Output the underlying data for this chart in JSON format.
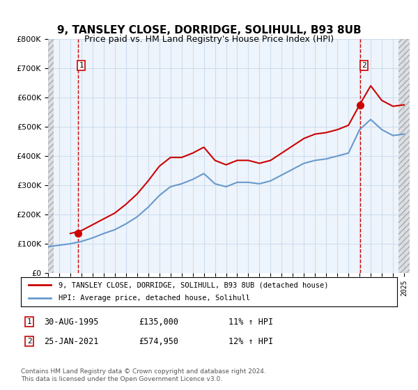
{
  "title": "9, TANSLEY CLOSE, DORRIDGE, SOLIHULL, B93 8UB",
  "subtitle": "Price paid vs. HM Land Registry's House Price Index (HPI)",
  "legend_line1": "9, TANSLEY CLOSE, DORRIDGE, SOLIHULL, B93 8UB (detached house)",
  "legend_line2": "HPI: Average price, detached house, Solihull",
  "annotation1": {
    "num": "1",
    "date": "30-AUG-1995",
    "price": "£135,000",
    "hpi": "11% ↑ HPI"
  },
  "annotation2": {
    "num": "2",
    "date": "25-JAN-2021",
    "price": "£574,950",
    "hpi": "12% ↑ HPI"
  },
  "footer": "Contains HM Land Registry data © Crown copyright and database right 2024.\nThis data is licensed under the Open Government Licence v3.0.",
  "price_color": "#cc0000",
  "hpi_color": "#6699cc",
  "hatch_color": "#cccccc",
  "grid_color": "#ccddee",
  "bg_color": "#ddeeff",
  "plot_bg": "#eef4fb",
  "marker1_x": 1995.67,
  "marker1_y": 135000,
  "marker2_x": 2021.07,
  "marker2_y": 574950,
  "ylim": [
    0,
    800000
  ],
  "xlim": [
    1993,
    2025.5
  ],
  "hpi_series_x": [
    1993,
    1994,
    1995,
    1996,
    1997,
    1998,
    1999,
    2000,
    2001,
    2002,
    2003,
    2004,
    2005,
    2006,
    2007,
    2008,
    2009,
    2010,
    2011,
    2012,
    2013,
    2014,
    2015,
    2016,
    2017,
    2018,
    2019,
    2020,
    2021,
    2022,
    2023,
    2024,
    2025
  ],
  "hpi_series_y": [
    90000,
    95000,
    100000,
    108000,
    120000,
    135000,
    148000,
    168000,
    192000,
    225000,
    265000,
    295000,
    305000,
    320000,
    340000,
    305000,
    295000,
    310000,
    310000,
    305000,
    315000,
    335000,
    355000,
    375000,
    385000,
    390000,
    400000,
    410000,
    490000,
    525000,
    490000,
    470000,
    475000
  ],
  "price_series_x": [
    1993,
    1994,
    1995,
    1996,
    1997,
    1998,
    1999,
    2000,
    2001,
    2002,
    2003,
    2004,
    2005,
    2006,
    2007,
    2008,
    2009,
    2010,
    2011,
    2012,
    2013,
    2014,
    2015,
    2016,
    2017,
    2018,
    2019,
    2020,
    2021,
    2022,
    2023,
    2024,
    2025
  ],
  "price_series_y": [
    null,
    null,
    135000,
    145000,
    165000,
    185000,
    205000,
    235000,
    270000,
    315000,
    365000,
    395000,
    395000,
    410000,
    430000,
    385000,
    370000,
    385000,
    385000,
    375000,
    385000,
    410000,
    435000,
    460000,
    475000,
    480000,
    490000,
    505000,
    574950,
    640000,
    590000,
    570000,
    575000
  ]
}
